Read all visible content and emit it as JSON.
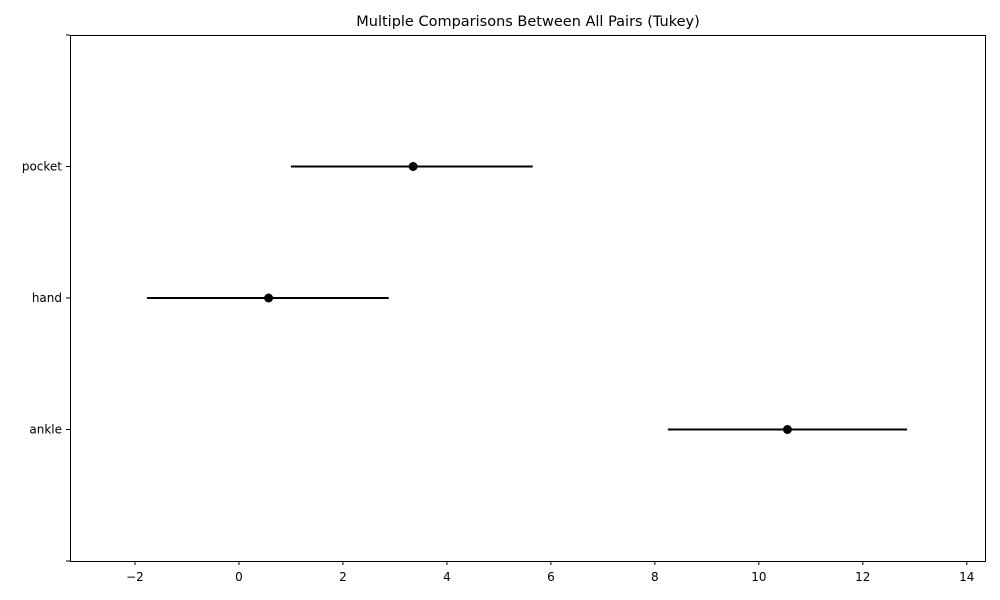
{
  "chart_data": {
    "type": "scatter",
    "subtype": "interval-plot",
    "title": "Multiple Comparisons Between All Pairs (Tukey)",
    "xlabel": "",
    "ylabel": "",
    "xlim": [
      -3.25,
      14.35
    ],
    "xticks": [
      -2,
      0,
      2,
      4,
      6,
      8,
      10,
      12,
      14
    ],
    "xtick_labels": [
      "−2",
      "0",
      "2",
      "4",
      "6",
      "8",
      "10",
      "12",
      "14"
    ],
    "groups": [
      {
        "label": "pocket",
        "mean": 3.35,
        "lower": 1.0,
        "upper": 5.65
      },
      {
        "label": "hand",
        "mean": 0.57,
        "lower": -1.77,
        "upper": 2.88
      },
      {
        "label": "ankle",
        "mean": 10.55,
        "lower": 8.25,
        "upper": 12.85
      }
    ],
    "grid": false,
    "legend": "none",
    "colors": {
      "marker": "#000000",
      "line": "#000000",
      "axes": "#000000",
      "background": "#ffffff"
    }
  }
}
